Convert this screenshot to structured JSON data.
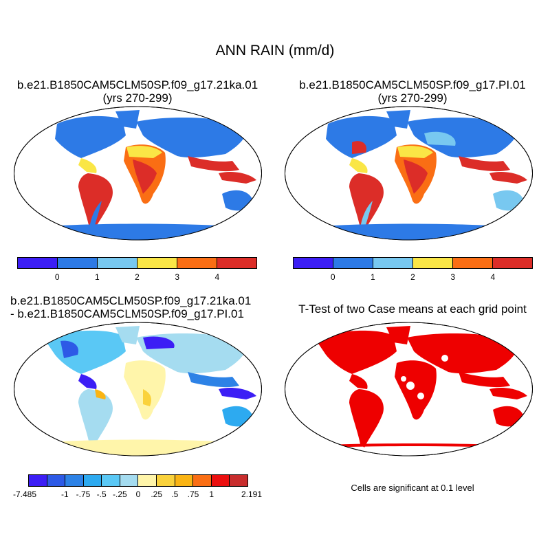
{
  "title": "ANN RAIN (mm/d)",
  "panels": [
    {
      "line1": "b.e21.B1850CAM5CLM50SP.f09_g17.21ka.01",
      "line2": "(yrs 270-299)"
    },
    {
      "line1": "b.e21.B1850CAM5CLM50SP.f09_g17.PI.01",
      "line2": "(yrs 270-299)"
    },
    {
      "line1": "b.e21.B1850CAM5CLM50SP.f09_g17.21ka.01",
      "line2": "- b.e21.B1850CAM5CLM50SP.f09_g17.PI.01"
    },
    {
      "line1": "T-Test of two Case means at each grid point",
      "line2": ""
    }
  ],
  "legend_top": {
    "colors": [
      "#3c1ef5",
      "#2d7ae6",
      "#78c8f0",
      "#fae646",
      "#fa6e14",
      "#dc2d28"
    ],
    "labels": [
      "0",
      "1",
      "2",
      "3",
      "4"
    ]
  },
  "legend_diff": {
    "colors": [
      "#3c1ef5",
      "#2d5ae6",
      "#2d82e6",
      "#2daaf0",
      "#5ac8f5",
      "#a5dcf0",
      "#fff5aa",
      "#fad23c",
      "#fab414",
      "#fa6e14",
      "#eb0f0f",
      "#c82d2d"
    ],
    "labels": [
      "-7.485",
      "-1",
      "-.75",
      "-.5",
      "-.25",
      "0",
      ".25",
      ".5",
      ".75",
      "1",
      "2.191"
    ]
  },
  "significance_note": "Cells are significant at 0.1 level",
  "map_colors": {
    "ocean": "#ffffff",
    "coast": "#000000",
    "significant": "#ee0000"
  }
}
